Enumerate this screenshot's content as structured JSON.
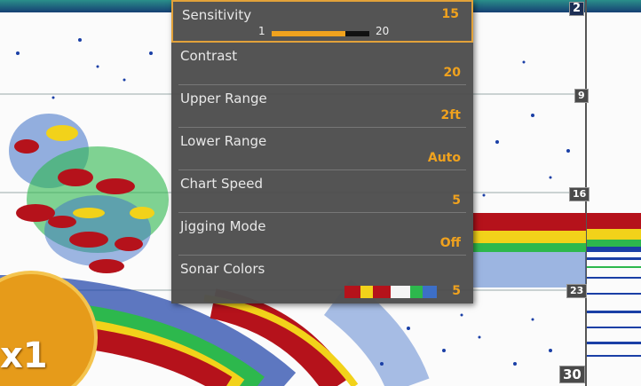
{
  "menu": {
    "items": [
      {
        "label": "Sensitivity",
        "value": "15",
        "selected": true,
        "slider": {
          "min": "1",
          "max": "20",
          "fraction": 0.75
        }
      },
      {
        "label": "Contrast",
        "value": "20"
      },
      {
        "label": "Upper Range",
        "value": "2ft"
      },
      {
        "label": "Lower Range",
        "value": "Auto"
      },
      {
        "label": "Chart Speed",
        "value": "5"
      },
      {
        "label": "Jigging Mode",
        "value": "Off"
      },
      {
        "label": "Sonar Colors",
        "value": "5"
      }
    ]
  },
  "depth_scale": {
    "top": "2",
    "marks": [
      "9",
      "16",
      "23"
    ],
    "bottom": "30"
  },
  "zoom": {
    "label": "x1"
  },
  "colors": {
    "accent": "#f0a21e",
    "menu_bg": "#4e4e4e",
    "sonar_red": "#b5121b",
    "sonar_yellow": "#f2d21a",
    "sonar_green": "#2db84d",
    "sonar_blue": "#1a3fa6"
  },
  "icons": {
    "zoom": "magnifier-zoom-badge"
  }
}
